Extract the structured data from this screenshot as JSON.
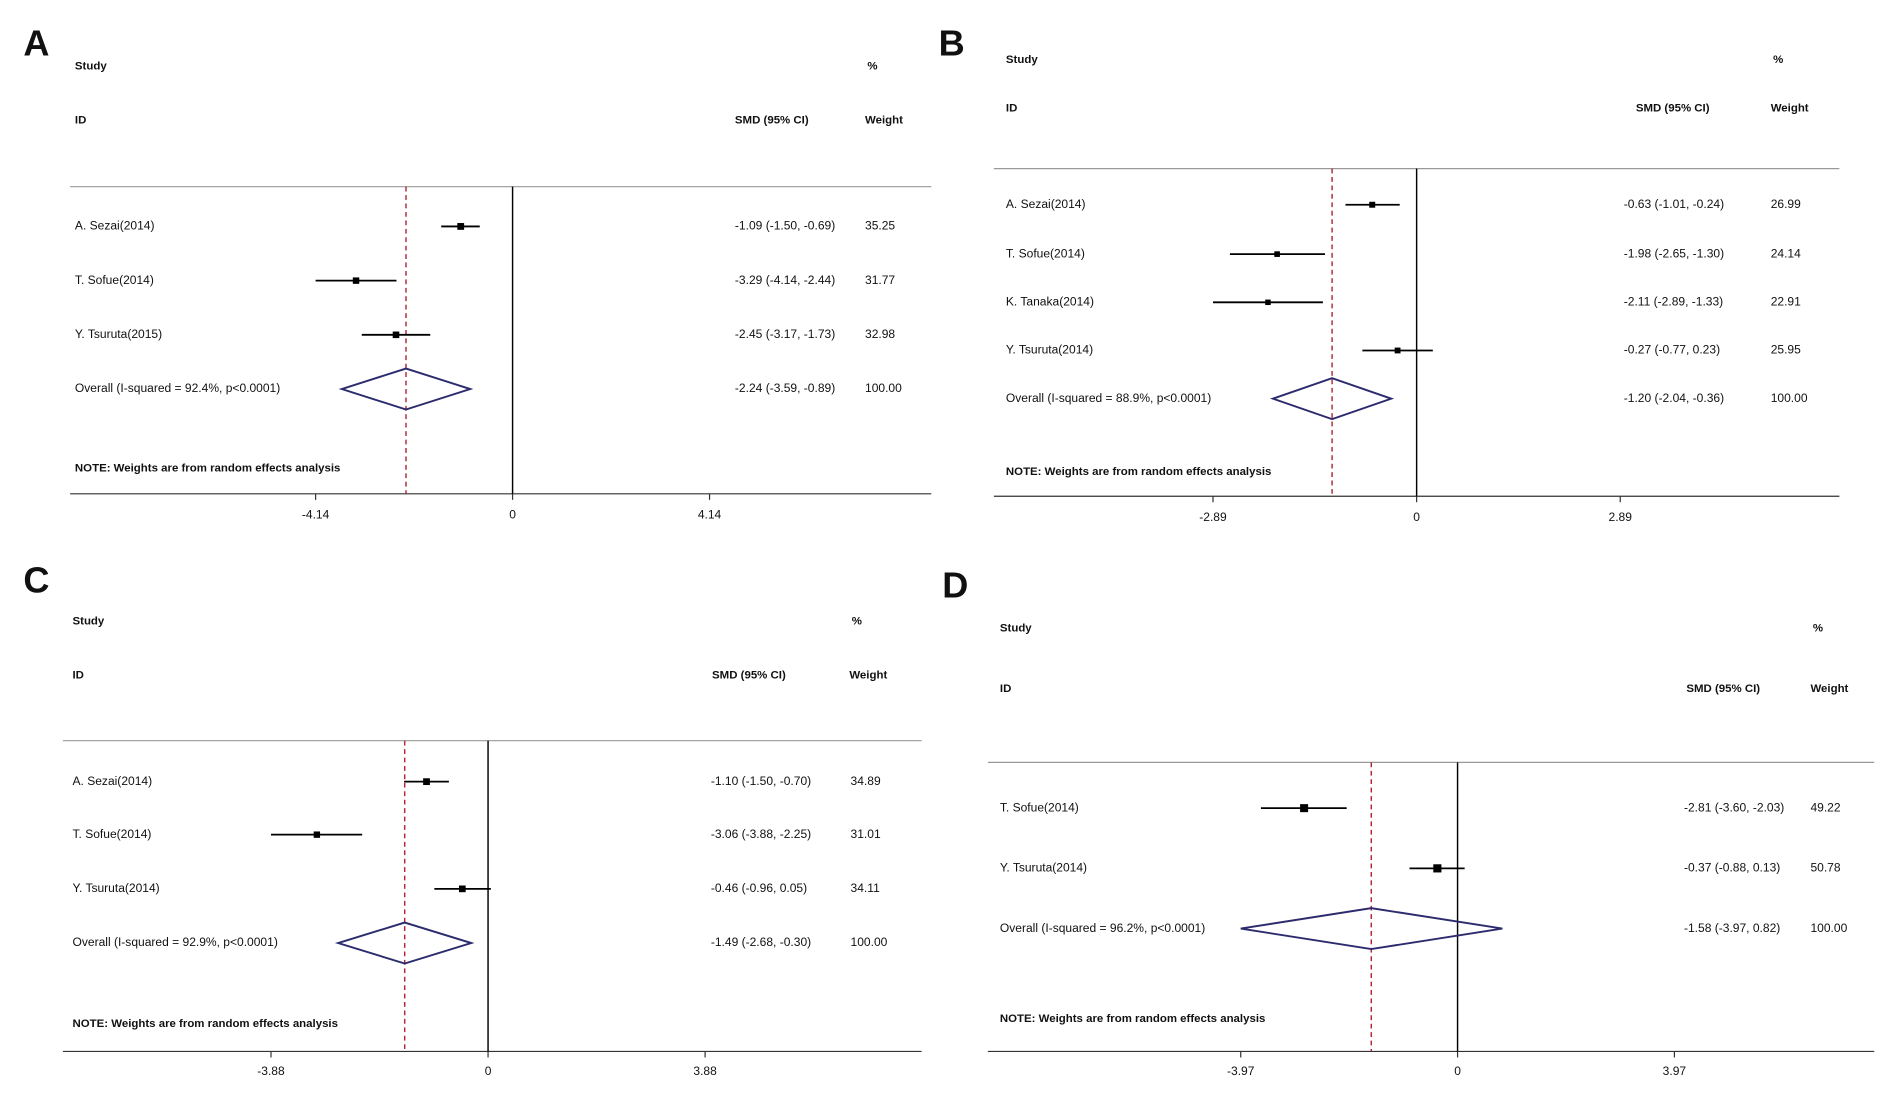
{
  "chart_data": [
    {
      "type": "forest",
      "panel": "A",
      "study_header": "Study",
      "id_header": "ID",
      "pct_header": "%",
      "effect_header": "SMD (95% CI)",
      "weight_header": "Weight",
      "color": "#000000",
      "diamond_color": "#2b2b6e",
      "ref_line_color": "#b0283a",
      "studies": [
        {
          "name": "A. Sezai(2014)",
          "smd": -1.09,
          "ci_low": -1.5,
          "ci_high": -0.69,
          "ci_label": "-1.09 (-1.50, -0.69)",
          "weight": 35.25
        },
        {
          "name": "T. Sofue(2014)",
          "smd": -3.29,
          "ci_low": -4.14,
          "ci_high": -2.44,
          "ci_label": "-3.29 (-4.14, -2.44)",
          "weight": 31.77
        },
        {
          "name": "Y. Tsuruta(2015)",
          "smd": -2.45,
          "ci_low": -3.17,
          "ci_high": -1.73,
          "ci_label": "-2.45 (-3.17, -1.73)",
          "weight": 32.98
        }
      ],
      "overall": {
        "label": "Overall  (I-squared = 92.4%,  p<0.0001)",
        "smd": -2.24,
        "ci_low": -3.59,
        "ci_high": -0.89,
        "ci_label": "-2.24 (-3.59, -0.89)",
        "weight": {
          "value": 100,
          "label": "100.00"
        }
      },
      "note": "NOTE: Weights are from random effects analysis",
      "xlim": [
        -9.3,
        8.8
      ],
      "xticks": [
        -4.14,
        0,
        4.14
      ]
    },
    {
      "type": "forest",
      "panel": "B",
      "study_header": "Study",
      "id_header": "ID",
      "pct_header": "%",
      "effect_header": "SMD (95% CI)",
      "weight_header": "Weight",
      "color": "#000000",
      "diamond_color": "#2b2b6e",
      "ref_line_color": "#b0283a",
      "studies": [
        {
          "name": "A. Sezai(2014)",
          "smd": -0.63,
          "ci_low": -1.01,
          "ci_high": -0.24,
          "ci_label": "-0.63 (-1.01, -0.24)",
          "weight": 26.99
        },
        {
          "name": "T. Sofue(2014)",
          "smd": -1.98,
          "ci_low": -2.65,
          "ci_high": -1.3,
          "ci_label": "-1.98 (-2.65, -1.30)",
          "weight": 24.14
        },
        {
          "name": "K. Tanaka(2014)",
          "smd": -2.11,
          "ci_low": -2.89,
          "ci_high": -1.33,
          "ci_label": "-2.11 (-2.89, -1.33)",
          "weight": 22.91
        },
        {
          "name": "Y. Tsuruta(2014)",
          "smd": -0.27,
          "ci_low": -0.77,
          "ci_high": 0.23,
          "ci_label": "-0.27 (-0.77, 0.23)",
          "weight": 25.95
        }
      ],
      "overall": {
        "label": "Overall  (I-squared = 88.9%,  p<0.0001)",
        "smd": -1.2,
        "ci_low": -2.04,
        "ci_high": -0.36,
        "ci_label": "-1.20 (-2.04, -0.36)",
        "weight": {
          "value": 100,
          "label": "100.00"
        }
      },
      "note": "NOTE: Weights are from random effects analysis",
      "xlim": [
        -6,
        6
      ],
      "xticks": [
        -2.89,
        0,
        2.89
      ]
    },
    {
      "type": "forest",
      "panel": "C",
      "study_header": "Study",
      "id_header": "ID",
      "pct_header": "%",
      "effect_header": "SMD (95% CI)",
      "weight_header": "Weight",
      "color": "#000000",
      "diamond_color": "#2b2b6e",
      "ref_line_color": "#b0283a",
      "studies": [
        {
          "name": "A. Sezai(2014)",
          "smd": -1.1,
          "ci_low": -1.5,
          "ci_high": -0.7,
          "ci_label": "-1.10 (-1.50, -0.70)",
          "weight": 34.89
        },
        {
          "name": "T. Sofue(2014)",
          "smd": -3.06,
          "ci_low": -3.88,
          "ci_high": -2.25,
          "ci_label": "-3.06 (-3.88, -2.25)",
          "weight": 31.01
        },
        {
          "name": "Y. Tsuruta(2014)",
          "smd": -0.46,
          "ci_low": -0.96,
          "ci_high": 0.05,
          "ci_label": "-0.46 (-0.96, 0.05)",
          "weight": 34.11
        }
      ],
      "overall": {
        "label": "Overall  (I-squared = 92.9%,  p<0.0001)",
        "smd": -1.49,
        "ci_low": -2.68,
        "ci_high": -0.3,
        "ci_label": "-1.49 (-2.68, -0.30)",
        "weight": {
          "value": 100,
          "label": "100.00"
        }
      },
      "note": "NOTE: Weights are from random effects analysis",
      "xlim": [
        -7.6,
        7.75
      ],
      "xticks": [
        -3.88,
        0,
        3.88
      ]
    },
    {
      "type": "forest",
      "panel": "D",
      "study_header": "Study",
      "id_header": "ID",
      "pct_header": "%",
      "effect_header": "SMD (95% CI)",
      "weight_header": "Weight",
      "color": "#000000",
      "diamond_color": "#2b2b6e",
      "ref_line_color": "#b0283a",
      "studies": [
        {
          "name": "T. Sofue(2014)",
          "smd": -2.81,
          "ci_low": -3.6,
          "ci_high": -2.03,
          "ci_label": "-2.81 (-3.60, -2.03)",
          "weight": 49.22
        },
        {
          "name": "Y. Tsuruta(2014)",
          "smd": -0.37,
          "ci_low": -0.88,
          "ci_high": 0.13,
          "ci_label": "-0.37 (-0.88, 0.13)",
          "weight": 50.78
        }
      ],
      "overall": {
        "label": "Overall  (I-squared = 96.2%,  p<0.0001)",
        "smd": -1.58,
        "ci_low": -3.97,
        "ci_high": 0.82,
        "ci_label": "-1.58 (-3.97, 0.82)",
        "weight": {
          "value": 100,
          "label": "100.00"
        }
      },
      "note": "NOTE: Weights are from random effects analysis",
      "xlim": [
        -8.6,
        7.63
      ],
      "xticks": [
        -3.97,
        0,
        3.97
      ]
    }
  ]
}
